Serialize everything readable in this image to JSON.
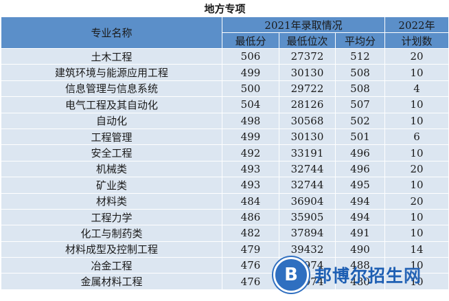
{
  "title": "地方专项",
  "headers": {
    "major": "专业名称",
    "group2021": "2021年录取情况",
    "min_score": "最低分",
    "min_rank": "最低位次",
    "avg_score": "平均分",
    "plan_line1": "2022年",
    "plan_line2": "计划数"
  },
  "rows": [
    {
      "major": "土木工程",
      "min": "506",
      "rank": "27372",
      "avg": "512",
      "plan": "20"
    },
    {
      "major": "建筑环境与能源应用工程",
      "min": "499",
      "rank": "30130",
      "avg": "508",
      "plan": "10"
    },
    {
      "major": "信息管理与信息系统",
      "min": "500",
      "rank": "29722",
      "avg": "508",
      "plan": "4"
    },
    {
      "major": "电气工程及其自动化",
      "min": "504",
      "rank": "28126",
      "avg": "507",
      "plan": "10"
    },
    {
      "major": "自动化",
      "min": "498",
      "rank": "30568",
      "avg": "502",
      "plan": "10"
    },
    {
      "major": "工程管理",
      "min": "499",
      "rank": "30130",
      "avg": "501",
      "plan": "6"
    },
    {
      "major": "安全工程",
      "min": "492",
      "rank": "33191",
      "avg": "496",
      "plan": "10"
    },
    {
      "major": "机械类",
      "min": "493",
      "rank": "32744",
      "avg": "496",
      "plan": "20"
    },
    {
      "major": "矿业类",
      "min": "493",
      "rank": "32744",
      "avg": "495",
      "plan": "10"
    },
    {
      "major": "材料类",
      "min": "484",
      "rank": "36904",
      "avg": "494",
      "plan": "20"
    },
    {
      "major": "工程力学",
      "min": "486",
      "rank": "35905",
      "avg": "494",
      "plan": "10"
    },
    {
      "major": "化工与制药类",
      "min": "482",
      "rank": "37894",
      "avg": "491",
      "plan": "10"
    },
    {
      "major": "材料成型及控制工程",
      "min": "479",
      "rank": "39432",
      "avg": "490",
      "plan": "14"
    },
    {
      "major": "冶金工程",
      "min": "476",
      "rank": "40974",
      "avg": "488",
      "plan": "10"
    },
    {
      "major": "金属材料工程",
      "min": "476",
      "rank": "40974",
      "avg": "480",
      "plan": "10"
    }
  ],
  "watermark": {
    "logo_letter": "B",
    "brand_cn": "邦博尔招生",
    "brand_w": "网",
    "logo_color": "#2f6fc0"
  },
  "colors": {
    "header_bg": "#5b8fc9",
    "row_bg": "#dce6f1"
  }
}
